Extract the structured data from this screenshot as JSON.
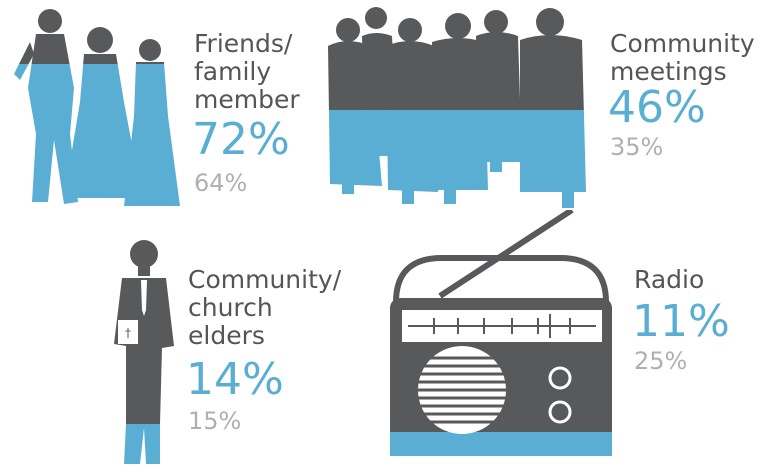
{
  "colors": {
    "dark": "#58595b",
    "accent": "#5aaed3",
    "muted": "#b0b0b0",
    "label": "#555555"
  },
  "chart_data": {
    "type": "pictograph",
    "series": [
      {
        "values": [
          72,
          46,
          14,
          11
        ],
        "color": "#5aaed3"
      },
      {
        "values": [
          64,
          35,
          15,
          25
        ],
        "color": "#b0b0b0"
      }
    ],
    "categories": [
      "Friends/\nfamily\nmember",
      "Community\nmeetings",
      "Community/\nchurch\nelders",
      "Radio"
    ],
    "items": [
      {
        "label": "Friends/\nfamily\nmember",
        "primary": "72%",
        "secondary": "64%",
        "icon": "family-icon"
      },
      {
        "label": "Community\nmeetings",
        "primary": "46%",
        "secondary": "35%",
        "icon": "crowd-icon"
      },
      {
        "label": "Community/\nchurch\nelders",
        "primary": "14%",
        "secondary": "15%",
        "icon": "elder-icon"
      },
      {
        "label": "Radio",
        "primary": "11%",
        "secondary": "25%",
        "icon": "radio-icon"
      }
    ]
  }
}
